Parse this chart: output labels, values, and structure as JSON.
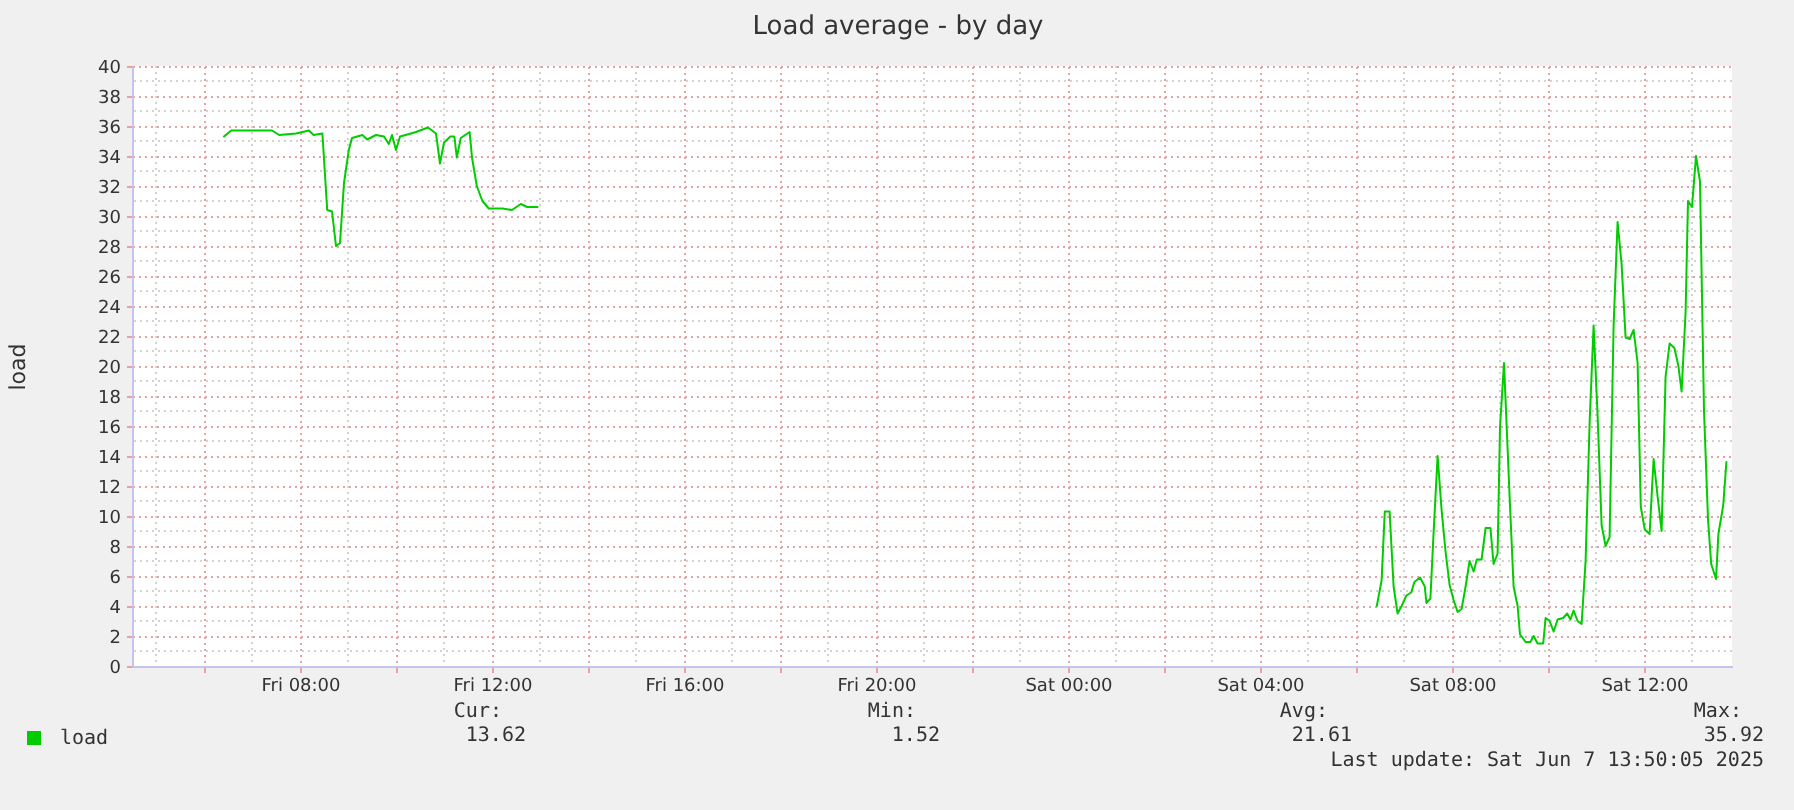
{
  "chart_data": {
    "type": "line",
    "title": "Load average - by day",
    "ylabel": "load",
    "x": [
      "2025-06-06T06:25",
      "2025-06-06T06:34",
      "2025-06-06T06:48",
      "2025-06-06T07:25",
      "2025-06-06T07:34",
      "2025-06-06T07:55",
      "2025-06-06T08:11",
      "2025-06-06T08:17",
      "2025-06-06T08:28",
      "2025-06-06T08:34",
      "2025-06-06T08:40",
      "2025-06-06T08:45",
      "2025-06-06T08:50",
      "2025-06-06T08:55",
      "2025-06-06T09:01",
      "2025-06-06T09:05",
      "2025-06-06T09:18",
      "2025-06-06T09:24",
      "2025-06-06T09:35",
      "2025-06-06T09:45",
      "2025-06-06T09:51",
      "2025-06-06T09:55",
      "2025-06-06T10:00",
      "2025-06-06T10:05",
      "2025-06-06T10:12",
      "2025-06-06T10:25",
      "2025-06-06T10:40",
      "2025-06-06T10:50",
      "2025-06-06T10:55",
      "2025-06-06T11:00",
      "2025-06-06T11:08",
      "2025-06-06T11:13",
      "2025-06-06T11:16",
      "2025-06-06T11:21",
      "2025-06-06T11:32",
      "2025-06-06T11:35",
      "2025-06-06T11:41",
      "2025-06-06T11:48",
      "2025-06-06T11:56",
      "2025-06-06T12:13",
      "2025-06-06T12:25",
      "2025-06-06T12:36",
      "2025-06-06T12:44",
      "2025-06-06T12:57",
      "2025-06-06T20:00",
      "2025-06-07T06:26",
      "2025-06-07T06:32",
      "2025-06-07T06:36",
      "2025-06-07T06:42",
      "2025-06-07T06:47",
      "2025-06-07T06:52",
      "2025-06-07T06:57",
      "2025-06-07T07:03",
      "2025-06-07T07:09",
      "2025-06-07T07:13",
      "2025-06-07T07:20",
      "2025-06-07T07:26",
      "2025-06-07T07:28",
      "2025-06-07T07:33",
      "2025-06-07T07:37",
      "2025-06-07T07:42",
      "2025-06-07T07:47",
      "2025-06-07T07:52",
      "2025-06-07T07:57",
      "2025-06-07T08:02",
      "2025-06-07T08:07",
      "2025-06-07T08:12",
      "2025-06-07T08:17",
      "2025-06-07T08:22",
      "2025-06-07T08:27",
      "2025-06-07T08:31",
      "2025-06-07T08:37",
      "2025-06-07T08:42",
      "2025-06-07T08:48",
      "2025-06-07T08:52",
      "2025-06-07T08:57",
      "2025-06-07T09:00",
      "2025-06-07T09:05",
      "2025-06-07T09:12",
      "2025-06-07T09:17",
      "2025-06-07T09:22",
      "2025-06-07T09:25",
      "2025-06-07T09:32",
      "2025-06-07T09:38",
      "2025-06-07T09:42",
      "2025-06-07T09:47",
      "2025-06-07T09:54",
      "2025-06-07T09:57",
      "2025-06-07T10:02",
      "2025-06-07T10:07",
      "2025-06-07T10:12",
      "2025-06-07T10:19",
      "2025-06-07T10:24",
      "2025-06-07T10:28",
      "2025-06-07T10:32",
      "2025-06-07T10:37",
      "2025-06-07T10:42",
      "2025-06-07T10:47",
      "2025-06-07T10:52",
      "2025-06-07T10:57",
      "2025-06-07T11:02",
      "2025-06-07T11:07",
      "2025-06-07T11:12",
      "2025-06-07T11:17",
      "2025-06-07T11:22",
      "2025-06-07T11:27",
      "2025-06-07T11:32",
      "2025-06-07T11:37",
      "2025-06-07T11:42",
      "2025-06-07T11:47",
      "2025-06-07T11:52",
      "2025-06-07T11:56",
      "2025-06-07T12:01",
      "2025-06-07T12:07",
      "2025-06-07T12:12",
      "2025-06-07T12:17",
      "2025-06-07T12:22",
      "2025-06-07T12:27",
      "2025-06-07T12:32",
      "2025-06-07T12:38",
      "2025-06-07T12:43",
      "2025-06-07T12:47",
      "2025-06-07T12:52",
      "2025-06-07T12:55",
      "2025-06-07T13:00",
      "2025-06-07T13:05",
      "2025-06-07T13:10",
      "2025-06-07T13:15",
      "2025-06-07T13:20",
      "2025-06-07T13:24",
      "2025-06-07T13:30",
      "2025-06-07T13:33",
      "2025-06-07T13:39",
      "2025-06-07T13:43"
    ],
    "series": [
      {
        "name": "load",
        "color": "#00cc00",
        "values": [
          35.3,
          35.7,
          35.7,
          35.7,
          35.4,
          35.5,
          35.7,
          35.4,
          35.5,
          30.4,
          30.3,
          28.0,
          28.2,
          32.2,
          34.4,
          35.2,
          35.4,
          35.1,
          35.4,
          35.3,
          34.8,
          35.4,
          34.4,
          35.3,
          35.4,
          35.6,
          35.9,
          35.5,
          33.5,
          34.9,
          35.3,
          35.3,
          33.9,
          35.2,
          35.6,
          33.9,
          32.0,
          31.0,
          30.5,
          30.5,
          30.4,
          30.8,
          30.6,
          30.6,
          null,
          4.0,
          5.7,
          10.3,
          10.3,
          5.3,
          3.5,
          4.0,
          4.7,
          4.9,
          5.6,
          5.9,
          5.3,
          4.2,
          4.5,
          8.9,
          14.0,
          10.4,
          7.6,
          5.4,
          4.4,
          3.6,
          3.8,
          5.3,
          7.0,
          6.3,
          7.1,
          7.1,
          9.2,
          9.2,
          6.8,
          7.5,
          15.9,
          20.2,
          11.3,
          5.3,
          4.0,
          2.1,
          1.6,
          1.6,
          2.0,
          1.5,
          1.5,
          3.2,
          3.0,
          2.3,
          3.1,
          3.2,
          3.5,
          3.1,
          3.7,
          3.0,
          2.8,
          7.0,
          16.2,
          22.7,
          16.7,
          9.4,
          8.0,
          8.6,
          22.7,
          29.6,
          26.8,
          21.9,
          21.8,
          22.4,
          20.2,
          10.6,
          9.1,
          8.8,
          13.8,
          11.3,
          9.0,
          19.3,
          21.5,
          21.2,
          20.0,
          18.3,
          23.6,
          31.0,
          30.6,
          34.0,
          32.3,
          17.0,
          9.8,
          6.8,
          5.8,
          8.8,
          10.7,
          13.6
        ]
      }
    ],
    "xlim": [
      "2025-06-06T04:30",
      "2025-06-07T13:50"
    ],
    "xticks": [
      {
        "value": "2025-06-06T06:00",
        "label": null
      },
      {
        "value": "2025-06-06T08:00",
        "label": "Fri 08:00"
      },
      {
        "value": "2025-06-06T10:00",
        "label": null
      },
      {
        "value": "2025-06-06T12:00",
        "label": "Fri 12:00"
      },
      {
        "value": "2025-06-06T14:00",
        "label": null
      },
      {
        "value": "2025-06-06T16:00",
        "label": "Fri 16:00"
      },
      {
        "value": "2025-06-06T18:00",
        "label": null
      },
      {
        "value": "2025-06-06T20:00",
        "label": "Fri 20:00"
      },
      {
        "value": "2025-06-06T22:00",
        "label": null
      },
      {
        "value": "2025-06-07T00:00",
        "label": "Sat 00:00"
      },
      {
        "value": "2025-06-07T02:00",
        "label": null
      },
      {
        "value": "2025-06-07T04:00",
        "label": "Sat 04:00"
      },
      {
        "value": "2025-06-07T06:00",
        "label": null
      },
      {
        "value": "2025-06-07T08:00",
        "label": "Sat 08:00"
      },
      {
        "value": "2025-06-07T10:00",
        "label": null
      },
      {
        "value": "2025-06-07T12:00",
        "label": "Sat 12:00"
      }
    ],
    "ylim": [
      0,
      40
    ],
    "yticks": [
      0,
      2,
      4,
      6,
      8,
      10,
      12,
      14,
      16,
      18,
      20,
      22,
      24,
      26,
      28,
      30,
      32,
      34,
      36,
      38,
      40
    ],
    "grid": true,
    "legend": "bottom left",
    "annotations": [
      "Cur:",
      "Min:",
      "Avg:",
      "Max:",
      "13.62",
      "1.52",
      "21.61",
      "35.92",
      "Last update: Sat Jun  7 13:50:05 2025"
    ]
  }
}
